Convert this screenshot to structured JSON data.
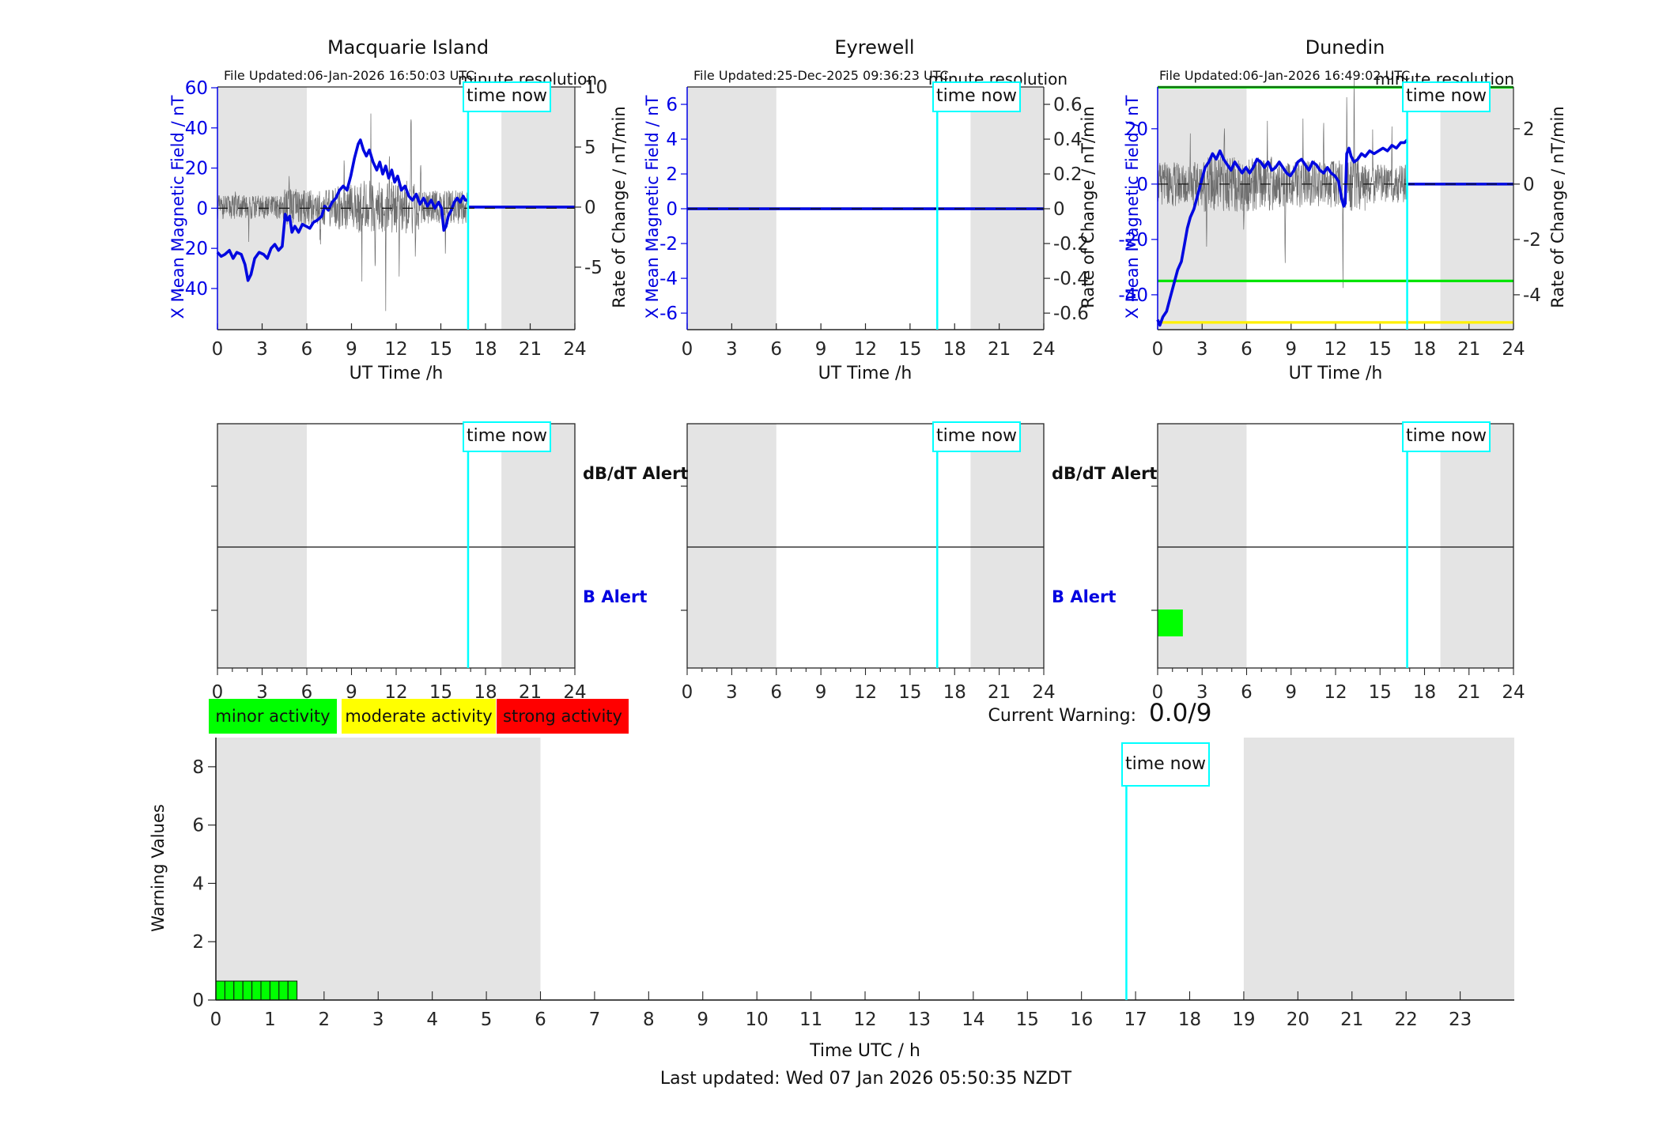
{
  "time_now_label": "time now",
  "alert_labels": {
    "db": "dB/dT Alert",
    "b": "B Alert"
  },
  "legend": {
    "items": [
      {
        "label": "minor activity",
        "color": "#00ff00"
      },
      {
        "label": "moderate activity",
        "color": "#ffff00"
      },
      {
        "label": "strong activity",
        "color": "#ff0000"
      }
    ]
  },
  "current_warning": {
    "label": "Current Warning:",
    "value": "0.0/9"
  },
  "bottom_axis": {
    "ylabel": "Warning Values",
    "xlabel": "Time UTC / h"
  },
  "footer": {
    "text": "Last updated: Wed 07 Jan 2026 05:50:35 NZDT"
  },
  "stations": [
    {
      "title": "Macquarie Island",
      "file_updated": "File Updated:06-Jan-2026 16:50:03 UTC",
      "resolution_note": "minute resolution",
      "left_axis_label": "X Mean Magnetic Field / nT",
      "right_axis_label": "Rate of Change / nT/min",
      "x_axis_label": "UT Time /h"
    },
    {
      "title": "Eyrewell",
      "file_updated": "File Updated:25-Dec-2025 09:36:23 UTC",
      "resolution_note": "minute resolution",
      "left_axis_label": "X Mean Magnetic Field / nT",
      "right_axis_label": "Rate of Change / nT/min",
      "x_axis_label": "UT Time /h"
    },
    {
      "title": "Dunedin",
      "file_updated": "File Updated:06-Jan-2026 16:49:02 UTC",
      "resolution_note": "minute resolution",
      "left_axis_label": "X Mean Magnetic Field / nT",
      "right_axis_label": "Rate of Change / nT/min",
      "x_axis_label": "UT Time /h"
    }
  ],
  "chart_data": [
    {
      "type": "line",
      "station": "Macquarie Island",
      "panel": "field",
      "x": {
        "ticks": [
          0,
          3,
          6,
          9,
          12,
          15,
          18,
          21,
          24
        ],
        "min": 0,
        "max": 24
      },
      "left": {
        "ticks": [
          60,
          40,
          20,
          0,
          -20,
          -40
        ],
        "min": -60.5,
        "max": 60.4
      },
      "right": {
        "ticks": [
          10,
          5,
          0,
          -5
        ],
        "min": -10.2,
        "max": 10.0
      },
      "night": [
        [
          0,
          6
        ],
        [
          19.07,
          24
        ]
      ],
      "time_now": 16.83,
      "flat_zero_after": true,
      "series_field": [
        [
          0,
          -22
        ],
        [
          0.25,
          -24
        ],
        [
          0.5,
          -23
        ],
        [
          0.8,
          -21
        ],
        [
          1.05,
          -25
        ],
        [
          1.3,
          -22
        ],
        [
          1.6,
          -23
        ],
        [
          1.85,
          -28
        ],
        [
          2.05,
          -36
        ],
        [
          2.25,
          -33
        ],
        [
          2.5,
          -25
        ],
        [
          2.8,
          -22
        ],
        [
          3.1,
          -23
        ],
        [
          3.35,
          -25
        ],
        [
          3.6,
          -20
        ],
        [
          3.85,
          -18
        ],
        [
          4.1,
          -21
        ],
        [
          4.35,
          -19
        ],
        [
          4.55,
          -3
        ],
        [
          4.7,
          -6
        ],
        [
          4.85,
          -4
        ],
        [
          5.0,
          -12
        ],
        [
          5.2,
          -9
        ],
        [
          5.45,
          -12
        ],
        [
          5.7,
          -8
        ],
        [
          5.95,
          -9
        ],
        [
          6.2,
          -10
        ],
        [
          6.45,
          -7
        ],
        [
          6.7,
          -6
        ],
        [
          7.0,
          -4
        ],
        [
          7.2,
          1
        ],
        [
          7.45,
          -1
        ],
        [
          7.7,
          3
        ],
        [
          7.95,
          5
        ],
        [
          8.2,
          9
        ],
        [
          8.45,
          11
        ],
        [
          8.7,
          9
        ],
        [
          8.95,
          16
        ],
        [
          9.2,
          25
        ],
        [
          9.45,
          32
        ],
        [
          9.6,
          34
        ],
        [
          9.8,
          29
        ],
        [
          10.0,
          26
        ],
        [
          10.2,
          29
        ],
        [
          10.45,
          23
        ],
        [
          10.7,
          19
        ],
        [
          10.9,
          23
        ],
        [
          11.1,
          17
        ],
        [
          11.3,
          21
        ],
        [
          11.5,
          15
        ],
        [
          11.7,
          19
        ],
        [
          11.9,
          13
        ],
        [
          12.1,
          16
        ],
        [
          12.35,
          9
        ],
        [
          12.6,
          11
        ],
        [
          12.85,
          6
        ],
        [
          13.1,
          4
        ],
        [
          13.35,
          7
        ],
        [
          13.6,
          2
        ],
        [
          13.85,
          5
        ],
        [
          14.1,
          1
        ],
        [
          14.35,
          4
        ],
        [
          14.6,
          0
        ],
        [
          14.85,
          3
        ],
        [
          15.05,
          0
        ],
        [
          15.2,
          -11
        ],
        [
          15.35,
          -9
        ],
        [
          15.5,
          -4
        ],
        [
          15.7,
          -1
        ],
        [
          15.9,
          3
        ],
        [
          16.1,
          5
        ],
        [
          16.3,
          3
        ],
        [
          16.5,
          6
        ],
        [
          16.65,
          4
        ],
        [
          16.83,
          4
        ]
      ],
      "noise": {
        "seed": 11,
        "segments": [
          [
            0,
            4.5,
            1.0
          ],
          [
            4.5,
            7.5,
            1.5
          ],
          [
            7.5,
            9.5,
            1.9
          ],
          [
            9.5,
            13.6,
            2.2
          ],
          [
            13.6,
            16.83,
            1.4
          ]
        ],
        "spikes": [
          [
            1.2,
            1.8
          ],
          [
            2.1,
            -2.0
          ],
          [
            4.8,
            2.2
          ],
          [
            6.9,
            -2.8
          ],
          [
            8.5,
            4.6
          ],
          [
            9.7,
            -4.0
          ],
          [
            10.3,
            7.4
          ],
          [
            10.6,
            -6.0
          ],
          [
            11.3,
            -8.3
          ],
          [
            11.55,
            5.0
          ],
          [
            12.2,
            -6.5
          ],
          [
            13.0,
            8.5
          ],
          [
            13.3,
            -5.0
          ],
          [
            13.65,
            3.5
          ],
          [
            15.3,
            -3.2
          ]
        ]
      },
      "hlines": []
    },
    {
      "type": "line",
      "station": "Eyrewell",
      "panel": "field",
      "x": {
        "ticks": [
          0,
          3,
          6,
          9,
          12,
          15,
          18,
          21,
          24
        ],
        "min": 0,
        "max": 24
      },
      "left": {
        "ticks": [
          6,
          4,
          2,
          0,
          -2,
          -4,
          -6
        ],
        "min": -6.95,
        "max": 7.0
      },
      "right": {
        "ticks": [
          0.6,
          0.4,
          0.2,
          0,
          -0.2,
          -0.4,
          -0.6
        ],
        "min": -0.695,
        "max": 0.7
      },
      "night": [
        [
          0,
          6
        ],
        [
          19.07,
          24
        ]
      ],
      "time_now": 16.83,
      "flat_zero_after": true,
      "series_field": [
        [
          0,
          0
        ],
        [
          16.83,
          0
        ]
      ],
      "noise": null,
      "hlines": []
    },
    {
      "type": "line",
      "station": "Dunedin",
      "panel": "field",
      "x": {
        "ticks": [
          0,
          3,
          6,
          9,
          12,
          15,
          18,
          21,
          24
        ],
        "min": 0,
        "max": 24
      },
      "left": {
        "ticks": [
          20,
          0,
          -20,
          -40
        ],
        "min": -52.6,
        "max": 35.1
      },
      "right": {
        "ticks": [
          2,
          0,
          -2,
          -4
        ],
        "min": -5.26,
        "max": 3.51
      },
      "night": [
        [
          0,
          6
        ],
        [
          19.07,
          24
        ]
      ],
      "time_now": 16.83,
      "flat_zero_after": true,
      "series_field": [
        [
          0,
          -49
        ],
        [
          0.15,
          -51
        ],
        [
          0.35,
          -48
        ],
        [
          0.6,
          -46
        ],
        [
          0.85,
          -41
        ],
        [
          1.1,
          -36
        ],
        [
          1.35,
          -31
        ],
        [
          1.6,
          -28
        ],
        [
          1.8,
          -22
        ],
        [
          2.0,
          -16
        ],
        [
          2.2,
          -12
        ],
        [
          2.45,
          -9
        ],
        [
          2.7,
          -4
        ],
        [
          2.95,
          1
        ],
        [
          3.2,
          6
        ],
        [
          3.45,
          8
        ],
        [
          3.7,
          11
        ],
        [
          3.95,
          9
        ],
        [
          4.2,
          12
        ],
        [
          4.45,
          9
        ],
        [
          4.7,
          7
        ],
        [
          4.95,
          5
        ],
        [
          5.2,
          8
        ],
        [
          5.45,
          6
        ],
        [
          5.7,
          4
        ],
        [
          5.95,
          6
        ],
        [
          6.2,
          4
        ],
        [
          6.45,
          6
        ],
        [
          6.7,
          9
        ],
        [
          6.95,
          8
        ],
        [
          7.2,
          6
        ],
        [
          7.45,
          8
        ],
        [
          7.7,
          5
        ],
        [
          7.95,
          6
        ],
        [
          8.2,
          8
        ],
        [
          8.45,
          6
        ],
        [
          8.7,
          4
        ],
        [
          8.95,
          3
        ],
        [
          9.2,
          5
        ],
        [
          9.45,
          8
        ],
        [
          9.7,
          9
        ],
        [
          9.95,
          7
        ],
        [
          10.2,
          5
        ],
        [
          10.45,
          8
        ],
        [
          10.7,
          7
        ],
        [
          10.95,
          5
        ],
        [
          11.2,
          4
        ],
        [
          11.45,
          6
        ],
        [
          11.7,
          4
        ],
        [
          11.95,
          3
        ],
        [
          12.2,
          1
        ],
        [
          12.4,
          -5
        ],
        [
          12.55,
          -8
        ],
        [
          12.65,
          -7
        ],
        [
          12.75,
          11
        ],
        [
          12.9,
          13
        ],
        [
          13.05,
          10
        ],
        [
          13.25,
          8
        ],
        [
          13.5,
          9
        ],
        [
          13.75,
          11
        ],
        [
          14.0,
          10
        ],
        [
          14.3,
          12
        ],
        [
          14.6,
          11
        ],
        [
          14.9,
          12
        ],
        [
          15.2,
          13
        ],
        [
          15.5,
          12
        ],
        [
          15.8,
          14
        ],
        [
          16.1,
          13
        ],
        [
          16.4,
          15
        ],
        [
          16.65,
          15
        ],
        [
          16.83,
          16
        ]
      ],
      "noise": {
        "seed": 5,
        "segments": [
          [
            0,
            3,
            0.8
          ],
          [
            3,
            8,
            1.0
          ],
          [
            8,
            12,
            0.85
          ],
          [
            12,
            14,
            1.0
          ],
          [
            14,
            16.83,
            0.7
          ]
        ],
        "spikes": [
          [
            2.2,
            1.7
          ],
          [
            3.3,
            -1.8
          ],
          [
            4.5,
            1.9
          ],
          [
            5.8,
            -2.0
          ],
          [
            7.4,
            2.2
          ],
          [
            8.6,
            -2.9
          ],
          [
            9.8,
            2.0
          ],
          [
            11.2,
            2.3
          ],
          [
            12.5,
            -3.3
          ],
          [
            12.75,
            2.5
          ],
          [
            13.25,
            2.9
          ],
          [
            14.5,
            1.5
          ],
          [
            15.8,
            1.6
          ]
        ]
      },
      "hlines": [
        {
          "value": 35,
          "color": "#00e400"
        },
        {
          "value": -35,
          "color": "#00e400"
        },
        {
          "value": -50,
          "color": "#fff000"
        }
      ]
    },
    {
      "type": "alert",
      "station": "Macquarie Island",
      "x": {
        "ticks": [
          0,
          3,
          6,
          9,
          12,
          15,
          18,
          21,
          24
        ],
        "min": 0,
        "max": 24
      },
      "night": [
        [
          0,
          6
        ],
        [
          19.07,
          24
        ]
      ],
      "time_now": 16.83,
      "bars": []
    },
    {
      "type": "alert",
      "station": "Eyrewell",
      "x": {
        "ticks": [
          0,
          3,
          6,
          9,
          12,
          15,
          18,
          21,
          24
        ],
        "min": 0,
        "max": 24
      },
      "night": [
        [
          0,
          6
        ],
        [
          19.07,
          24
        ]
      ],
      "time_now": 16.83,
      "bars": []
    },
    {
      "type": "alert",
      "station": "Dunedin",
      "x": {
        "ticks": [
          0,
          3,
          6,
          9,
          12,
          15,
          18,
          21,
          24
        ],
        "min": 0,
        "max": 24
      },
      "night": [
        [
          0,
          6
        ],
        [
          19.07,
          24
        ]
      ],
      "time_now": 16.83,
      "bars": [
        {
          "row": "b",
          "h0": 0,
          "h1": 1.7,
          "color": "#00ff00"
        }
      ]
    },
    {
      "type": "bar",
      "station": "all",
      "panel": "warning",
      "title": "",
      "ylabel": "Warning Values",
      "xlabel": "Time UTC / h",
      "x": {
        "ticks": [
          0,
          1,
          2,
          3,
          4,
          5,
          6,
          7,
          8,
          9,
          10,
          11,
          12,
          13,
          14,
          15,
          16,
          17,
          18,
          19,
          20,
          21,
          22,
          23
        ],
        "min": 0,
        "max": 24
      },
      "y": {
        "ticks": [
          0,
          2,
          4,
          6,
          8
        ],
        "min": 0,
        "max": 9
      },
      "night": [
        [
          0,
          6
        ],
        [
          19,
          24
        ]
      ],
      "time_now": 16.83,
      "bars": {
        "start_h": 0,
        "cell_hours": 0.166667,
        "color": "#00ff00",
        "values": [
          0.65,
          0.65,
          0.65,
          0.65,
          0.65,
          0.65,
          0.65,
          0.65,
          0.65
        ]
      }
    }
  ]
}
